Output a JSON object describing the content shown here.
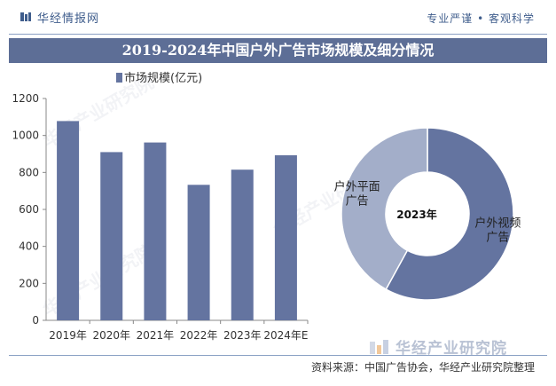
{
  "header": {
    "brand_name": "华经情报网",
    "slogan": "专业严谨 • 客观科学"
  },
  "title": "2019-2024年中国户外广告市场规模及细分情况",
  "chart_data": [
    {
      "type": "bar",
      "categories": [
        "2019年",
        "2020年",
        "2021年",
        "2022年",
        "2023年",
        "2024年E"
      ],
      "series": [
        {
          "name": "市场规模(亿元)",
          "values": [
            1078,
            910,
            962,
            733,
            815,
            893
          ]
        }
      ],
      "ylim": [
        0,
        1200
      ],
      "yticks": [
        0,
        200,
        400,
        600,
        800,
        1000,
        1200
      ],
      "legend": "top-left",
      "grid": false,
      "color": "#6474a0"
    },
    {
      "type": "pie",
      "center_label": "2023年",
      "labels": [
        "户外视频广告",
        "户外平面广告"
      ],
      "label_lines": [
        [
          "户外视频",
          "广告"
        ],
        [
          "户外平面",
          "广告"
        ]
      ],
      "values": [
        58,
        42
      ],
      "colors": [
        "#6474a0",
        "#a3aec9"
      ]
    }
  ],
  "footer": {
    "source": "资料来源：中国广告协会，华经产业研究院整理",
    "watermark_logo_text": "华经产业研究院"
  }
}
